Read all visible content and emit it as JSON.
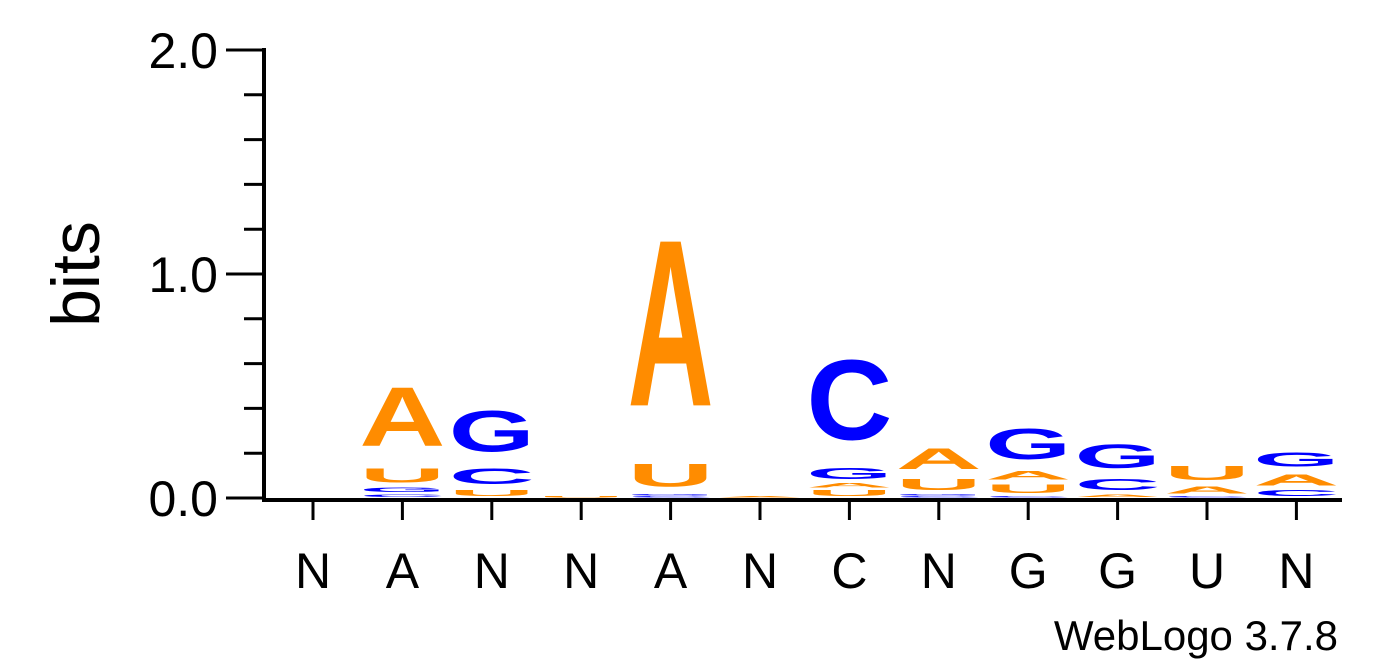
{
  "chart_data": {
    "type": "sequence-logo",
    "ylabel": "bits",
    "ylim": [
      0,
      2
    ],
    "yticks": [
      "0.0",
      "1.0",
      "2.0"
    ],
    "consensus": [
      "N",
      "A",
      "N",
      "N",
      "A",
      "N",
      "C",
      "N",
      "G",
      "G",
      "U",
      "N"
    ],
    "colors": {
      "A": "#FF8C00",
      "U": "#FF8C00",
      "C": "#0000FF",
      "G": "#0000FF"
    },
    "positions": [
      {
        "consensus": "N",
        "stack": []
      },
      {
        "consensus": "A",
        "stack": [
          {
            "letter": "C",
            "height": 0.02
          },
          {
            "letter": "G",
            "height": 0.03
          },
          {
            "letter": "U",
            "height": 0.1
          },
          {
            "letter": "A",
            "height": 0.42
          }
        ]
      },
      {
        "consensus": "N",
        "stack": [
          {
            "letter": "U",
            "height": 0.04
          },
          {
            "letter": "C",
            "height": 0.11
          },
          {
            "letter": "G",
            "height": 0.29
          }
        ]
      },
      {
        "consensus": "N",
        "stack": [
          {
            "letter": "U",
            "height": 0.01
          }
        ]
      },
      {
        "consensus": "A",
        "stack": [
          {
            "letter": "C",
            "height": 0.01
          },
          {
            "letter": "G",
            "height": 0.01
          },
          {
            "letter": "U",
            "height": 0.16
          },
          {
            "letter": "A",
            "height": 1.19
          }
        ]
      },
      {
        "consensus": "N",
        "stack": [
          {
            "letter": "A",
            "height": 0.01
          }
        ]
      },
      {
        "consensus": "C",
        "stack": [
          {
            "letter": "U",
            "height": 0.04
          },
          {
            "letter": "A",
            "height": 0.03
          },
          {
            "letter": "G",
            "height": 0.08
          },
          {
            "letter": "C",
            "height": 0.57
          }
        ]
      },
      {
        "consensus": "N",
        "stack": [
          {
            "letter": "C",
            "height": 0.01
          },
          {
            "letter": "G",
            "height": 0.01
          },
          {
            "letter": "U",
            "height": 0.08
          },
          {
            "letter": "A",
            "height": 0.15
          }
        ]
      },
      {
        "consensus": "G",
        "stack": [
          {
            "letter": "C",
            "height": 0.01
          },
          {
            "letter": "U",
            "height": 0.06
          },
          {
            "letter": "A",
            "height": 0.06
          },
          {
            "letter": "G",
            "height": 0.22
          }
        ]
      },
      {
        "consensus": "G",
        "stack": [
          {
            "letter": "A",
            "height": 0.02
          },
          {
            "letter": "C",
            "height": 0.08
          },
          {
            "letter": "G",
            "height": 0.17
          }
        ]
      },
      {
        "consensus": "U",
        "stack": [
          {
            "letter": "C",
            "height": 0.01
          },
          {
            "letter": "A",
            "height": 0.05
          },
          {
            "letter": "U",
            "height": 0.1
          }
        ]
      },
      {
        "consensus": "N",
        "stack": [
          {
            "letter": "C",
            "height": 0.04
          },
          {
            "letter": "A",
            "height": 0.08
          },
          {
            "letter": "G",
            "height": 0.1
          }
        ]
      }
    ]
  },
  "footer": {
    "credit": "WebLogo 3.7.8"
  }
}
